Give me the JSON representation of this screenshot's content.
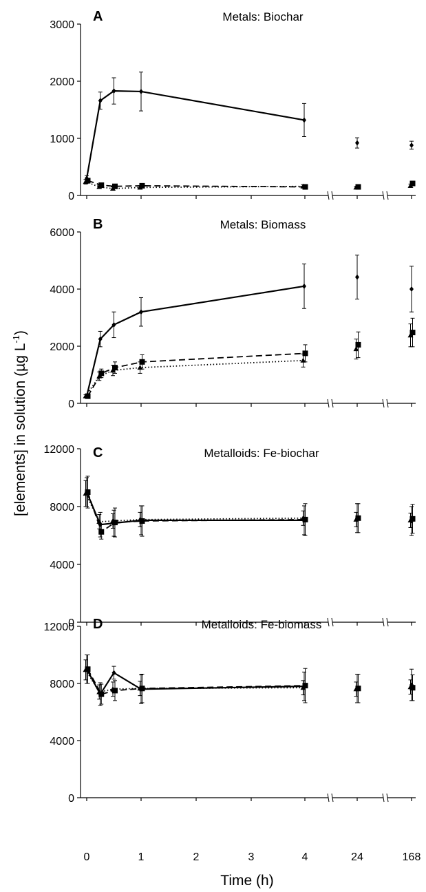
{
  "figure": {
    "ylabel_main": "[elements] in solution (µg L",
    "ylabel_sup": "-1",
    "ylabel_end": ")",
    "xlabel": "Time (h)",
    "x_ticks": [
      {
        "pos": 0,
        "label": "0"
      },
      {
        "pos": 1,
        "label": "1"
      },
      {
        "pos": 2,
        "label": "2"
      },
      {
        "pos": 3,
        "label": "3"
      },
      {
        "pos": 4,
        "label": "4"
      },
      {
        "pos": 5,
        "label": "24"
      },
      {
        "pos": 6,
        "label": "168"
      }
    ]
  },
  "chart_data": [
    {
      "type": "line",
      "panel": "A",
      "title": "Metals: Biochar",
      "ylim": [
        0,
        3000
      ],
      "yticks": [
        0,
        1000,
        2000,
        3000
      ],
      "x": [
        0,
        0.25,
        0.5,
        1,
        4,
        24,
        168
      ],
      "series": [
        {
          "style": "solid",
          "marker": "diamond",
          "values": [
            300,
            1660,
            1830,
            1820,
            1320,
            920,
            880
          ],
          "errors": [
            50,
            150,
            230,
            340,
            290,
            90,
            70
          ]
        },
        {
          "style": "dashed",
          "marker": "square",
          "values": [
            260,
            180,
            160,
            170,
            150,
            150,
            210
          ],
          "errors": [
            40,
            30,
            30,
            30,
            40,
            20,
            40
          ]
        },
        {
          "style": "dotted",
          "marker": "triangle",
          "values": [
            240,
            150,
            120,
            140,
            160,
            140,
            170
          ],
          "errors": [
            40,
            30,
            30,
            30,
            30,
            20,
            30
          ]
        }
      ]
    },
    {
      "type": "line",
      "panel": "B",
      "title": "Metals: Biomass",
      "ylim": [
        0,
        6000
      ],
      "yticks": [
        0,
        2000,
        4000,
        6000
      ],
      "x": [
        0,
        0.25,
        0.5,
        1,
        4,
        24,
        168
      ],
      "series": [
        {
          "style": "solid",
          "marker": "diamond",
          "values": [
            250,
            2250,
            2750,
            3200,
            4100,
            4420,
            4000
          ],
          "errors": [
            50,
            270,
            450,
            500,
            780,
            770,
            800
          ]
        },
        {
          "style": "dashed",
          "marker": "square",
          "values": [
            250,
            1050,
            1250,
            1450,
            1750,
            2050,
            2480
          ],
          "errors": [
            50,
            150,
            200,
            250,
            300,
            450,
            500
          ]
        },
        {
          "style": "dotted",
          "marker": "triangle",
          "values": [
            250,
            950,
            1150,
            1250,
            1500,
            1900,
            2380
          ],
          "errors": [
            50,
            150,
            180,
            200,
            230,
            350,
            400
          ]
        }
      ]
    },
    {
      "type": "line",
      "panel": "C",
      "title": "Metalloids: Fe-biochar",
      "ylim": [
        0,
        12000
      ],
      "yticks": [
        0,
        4000,
        8000,
        12000
      ],
      "x": [
        0,
        0.25,
        0.5,
        1,
        4,
        24,
        168
      ],
      "series": [
        {
          "style": "solid",
          "marker": "diamond",
          "values": [
            9000,
            6750,
            6850,
            7050,
            7050,
            7200,
            7000
          ],
          "errors": [
            1000,
            850,
            900,
            1000,
            1000,
            1000,
            1000
          ]
        },
        {
          "style": "dashed",
          "marker": "square",
          "values": [
            9000,
            6250,
            6900,
            7000,
            7100,
            7200,
            7150
          ],
          "errors": [
            1100,
            500,
            1000,
            1050,
            1100,
            1000,
            1000
          ]
        },
        {
          "style": "dotted",
          "marker": "triangle",
          "values": [
            8900,
            6950,
            7000,
            7100,
            7200,
            7100,
            7050
          ],
          "errors": [
            900,
            500,
            500,
            500,
            500,
            500,
            500
          ]
        }
      ]
    },
    {
      "type": "line",
      "panel": "D",
      "title": "Metalloids: Fe-biomass",
      "ylim": [
        0,
        12000
      ],
      "yticks": [
        0,
        4000,
        8000,
        12000
      ],
      "x": [
        0,
        0.25,
        0.5,
        1,
        4,
        24,
        168
      ],
      "series": [
        {
          "style": "solid",
          "marker": "diamond",
          "values": [
            9000,
            7250,
            8750,
            7600,
            7800,
            7650,
            7900
          ],
          "errors": [
            1000,
            800,
            450,
            1000,
            1000,
            1000,
            1100
          ]
        },
        {
          "style": "dashed",
          "marker": "square",
          "values": [
            9000,
            7250,
            7500,
            7650,
            7850,
            7650,
            7700
          ],
          "errors": [
            1000,
            700,
            700,
            1000,
            1200,
            1000,
            900
          ]
        },
        {
          "style": "dotted",
          "marker": "triangle",
          "values": [
            8950,
            7400,
            7600,
            7650,
            7700,
            7600,
            7750
          ],
          "errors": [
            700,
            500,
            500,
            500,
            500,
            500,
            500
          ]
        }
      ]
    }
  ]
}
